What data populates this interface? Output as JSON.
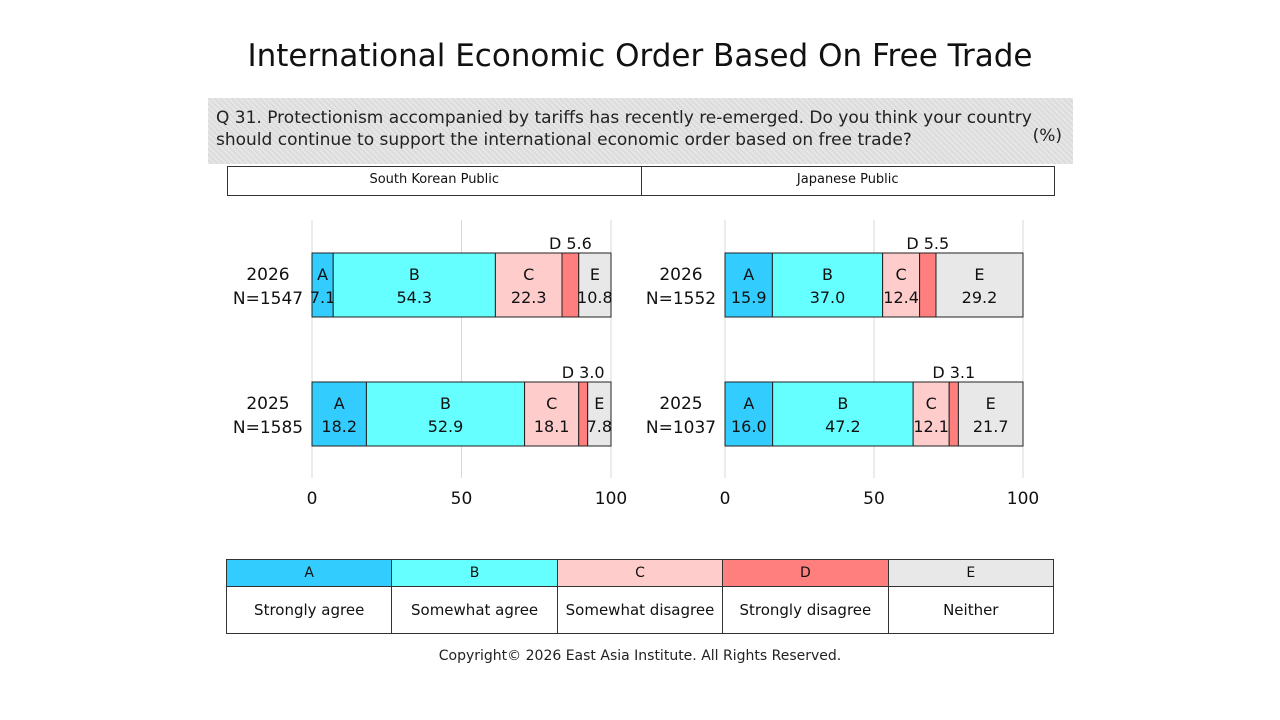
{
  "title": "International Economic Order Based On Free Trade",
  "question": "Q 31. Protectionism accompanied by tariffs has recently re-emerged. Do you think your country should continue to support the international economic order based on free trade?",
  "unit": "(%)",
  "copyright": "Copyright© 2026 East Asia Institute. All Rights Reserved.",
  "colors": {
    "A": "#33ccff",
    "B": "#66ffff",
    "C": "#ffcccc",
    "D": "#ff7f7f",
    "E": "#e8e8e8"
  },
  "legend": [
    {
      "key": "A",
      "label": "Strongly agree"
    },
    {
      "key": "B",
      "label": "Somewhat agree"
    },
    {
      "key": "C",
      "label": "Somewhat disagree"
    },
    {
      "key": "D",
      "label": "Strongly disagree"
    },
    {
      "key": "E",
      "label": "Neither"
    }
  ],
  "chart_data": [
    {
      "type": "bar",
      "orientation": "horizontal",
      "stacked": true,
      "title": "South Korean Public",
      "xlim": [
        0,
        100
      ],
      "xticks": [
        "0",
        "50",
        "100"
      ],
      "grid": true,
      "rows": [
        {
          "year": "2026",
          "n": "N=1547",
          "values": {
            "A": 7.1,
            "B": 54.3,
            "C": 22.3,
            "D": 5.6,
            "E": 10.8
          }
        },
        {
          "year": "2025",
          "n": "N=1585",
          "values": {
            "A": 18.2,
            "B": 52.9,
            "C": 18.1,
            "D": 3.0,
            "E": 7.8
          }
        }
      ],
      "labels": [
        {
          "A": "7.1",
          "B": "54.3",
          "C": "22.3",
          "D": "D 5.6",
          "E": "10.8"
        },
        {
          "A": "18.2",
          "B": "52.9",
          "C": "18.1",
          "D": "D 3.0",
          "E": "7.8"
        }
      ]
    },
    {
      "type": "bar",
      "orientation": "horizontal",
      "stacked": true,
      "title": "Japanese Public",
      "xlim": [
        0,
        100
      ],
      "xticks": [
        "0",
        "50",
        "100"
      ],
      "grid": true,
      "rows": [
        {
          "year": "2026",
          "n": "N=1552",
          "values": {
            "A": 15.9,
            "B": 37.0,
            "C": 12.4,
            "D": 5.5,
            "E": 29.2
          }
        },
        {
          "year": "2025",
          "n": "N=1037",
          "values": {
            "A": 16.0,
            "B": 47.2,
            "C": 12.1,
            "D": 3.1,
            "E": 21.7
          }
        }
      ],
      "labels": [
        {
          "A": "15.9",
          "B": "37.0",
          "C": "12.4",
          "D": "D 5.5",
          "E": "29.2"
        },
        {
          "A": "16.0",
          "B": "47.2",
          "C": "12.1",
          "D": "D 3.1",
          "E": "21.7"
        }
      ]
    }
  ]
}
